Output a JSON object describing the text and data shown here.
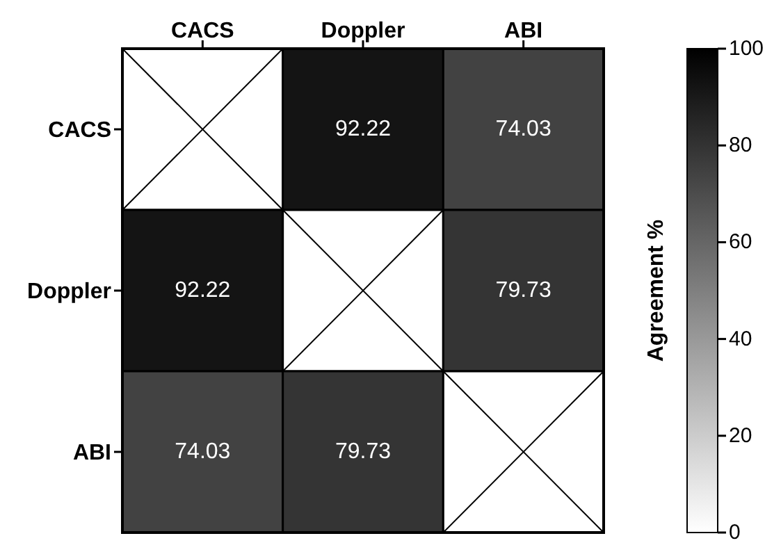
{
  "chart_data": {
    "type": "heatmap",
    "categories": [
      "CACS",
      "Doppler",
      "ABI"
    ],
    "y_categories": [
      "CACS",
      "Doppler",
      "ABI"
    ],
    "cells": [
      [
        null,
        92.22,
        74.03
      ],
      [
        92.22,
        null,
        79.73
      ],
      [
        74.03,
        79.73,
        null
      ]
    ],
    "data_labels": true,
    "clabel": "Agreement %",
    "clim": [
      0,
      100
    ],
    "cticks": [
      0,
      20,
      40,
      60,
      80,
      100
    ]
  }
}
